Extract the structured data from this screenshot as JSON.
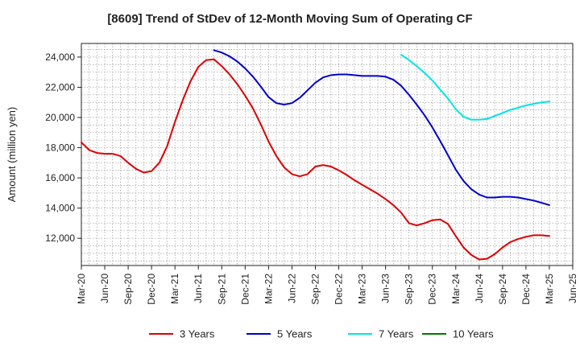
{
  "chart_data": {
    "type": "line",
    "title": "[8609]  Trend of StDev of 12-Month Moving Sum of Operating CF",
    "xlabel": "",
    "ylabel": "Amount (million yen)",
    "xlim": [
      "Mar-20",
      "Jun-25"
    ],
    "ylim": [
      10200,
      24900
    ],
    "x_ticks": [
      "Mar-20",
      "Jun-20",
      "Sep-20",
      "Dec-20",
      "Mar-21",
      "Jun-21",
      "Sep-21",
      "Dec-21",
      "Mar-22",
      "Jun-22",
      "Sep-22",
      "Dec-22",
      "Mar-23",
      "Jun-23",
      "Sep-23",
      "Dec-23",
      "Mar-24",
      "Jun-24",
      "Sep-24",
      "Dec-24",
      "Mar-25",
      "Jun-25"
    ],
    "y_ticks": [
      12000,
      14000,
      16000,
      18000,
      20000,
      22000,
      24000
    ],
    "y_tick_labels": [
      "12,000",
      "14,000",
      "16,000",
      "18,000",
      "20,000",
      "22,000",
      "24,000"
    ],
    "grid": true,
    "legend_position": "bottom",
    "series": [
      {
        "name": "3 Years",
        "color": "#dd0000",
        "x": [
          "2020-03",
          "2020-04",
          "2020-05",
          "2020-06",
          "2020-07",
          "2020-08",
          "2020-09",
          "2020-10",
          "2020-11",
          "2020-12",
          "2021-01",
          "2021-02",
          "2021-03",
          "2021-04",
          "2021-05",
          "2021-06",
          "2021-07",
          "2021-08",
          "2021-09",
          "2021-10",
          "2021-11",
          "2021-12",
          "2022-01",
          "2022-02",
          "2022-03",
          "2022-04",
          "2022-05",
          "2022-06",
          "2022-07",
          "2022-08",
          "2022-09",
          "2022-10",
          "2022-11",
          "2022-12",
          "2023-01",
          "2023-02",
          "2023-03",
          "2023-04",
          "2023-05",
          "2023-06",
          "2023-07",
          "2023-08",
          "2023-09",
          "2023-10",
          "2023-11",
          "2023-12",
          "2024-01",
          "2024-02",
          "2024-03",
          "2024-04",
          "2024-05",
          "2024-06",
          "2024-07",
          "2024-08",
          "2024-09",
          "2024-10",
          "2024-11",
          "2024-12",
          "2025-01",
          "2025-02",
          "2025-03"
        ],
        "values": [
          18350,
          17850,
          17650,
          17600,
          17600,
          17450,
          17000,
          16600,
          16350,
          16450,
          17000,
          18100,
          19700,
          21150,
          22400,
          23350,
          23800,
          23850,
          23400,
          22850,
          22200,
          21450,
          20600,
          19550,
          18400,
          17450,
          16700,
          16250,
          16100,
          16250,
          16750,
          16850,
          16750,
          16500,
          16200,
          15850,
          15550,
          15250,
          14950,
          14600,
          14200,
          13700,
          13000,
          12850,
          13000,
          13200,
          13250,
          12950,
          12150,
          11400,
          10900,
          10600,
          10650,
          10950,
          11400,
          11750,
          11950,
          12100,
          12200,
          12200,
          12150
        ]
      },
      {
        "name": "5 Years",
        "color": "#0000cc",
        "x": [
          "2021-08",
          "2021-09",
          "2021-10",
          "2021-11",
          "2021-12",
          "2022-01",
          "2022-02",
          "2022-03",
          "2022-04",
          "2022-05",
          "2022-06",
          "2022-07",
          "2022-08",
          "2022-09",
          "2022-10",
          "2022-11",
          "2022-12",
          "2023-01",
          "2023-02",
          "2023-03",
          "2023-04",
          "2023-05",
          "2023-06",
          "2023-07",
          "2023-08",
          "2023-09",
          "2023-10",
          "2023-11",
          "2023-12",
          "2024-01",
          "2024-02",
          "2024-03",
          "2024-04",
          "2024-05",
          "2024-06",
          "2024-07",
          "2024-08",
          "2024-09",
          "2024-10",
          "2024-11",
          "2024-12",
          "2025-01",
          "2025-02",
          "2025-03"
        ],
        "values": [
          24450,
          24300,
          24050,
          23700,
          23250,
          22700,
          22050,
          21350,
          20950,
          20850,
          20950,
          21300,
          21800,
          22300,
          22650,
          22800,
          22850,
          22850,
          22800,
          22750,
          22750,
          22750,
          22700,
          22500,
          22100,
          21500,
          20850,
          20150,
          19350,
          18450,
          17500,
          16550,
          15800,
          15250,
          14900,
          14700,
          14700,
          14750,
          14750,
          14700,
          14600,
          14500,
          14350,
          14200
        ]
      },
      {
        "name": "7 Years",
        "color": "#00e5e5",
        "x": [
          "2023-08",
          "2023-09",
          "2023-10",
          "2023-11",
          "2023-12",
          "2024-01",
          "2024-02",
          "2024-03",
          "2024-04",
          "2024-05",
          "2024-06",
          "2024-07",
          "2024-08",
          "2024-09",
          "2024-10",
          "2024-11",
          "2024-12",
          "2025-01",
          "2025-02",
          "2025-03"
        ],
        "values": [
          24150,
          23800,
          23400,
          22950,
          22450,
          21850,
          21250,
          20550,
          20050,
          19850,
          19850,
          19900,
          20100,
          20300,
          20500,
          20650,
          20800,
          20900,
          21000,
          21050
        ]
      },
      {
        "name": "10 Years",
        "color": "#007700",
        "x": [],
        "values": []
      }
    ]
  }
}
